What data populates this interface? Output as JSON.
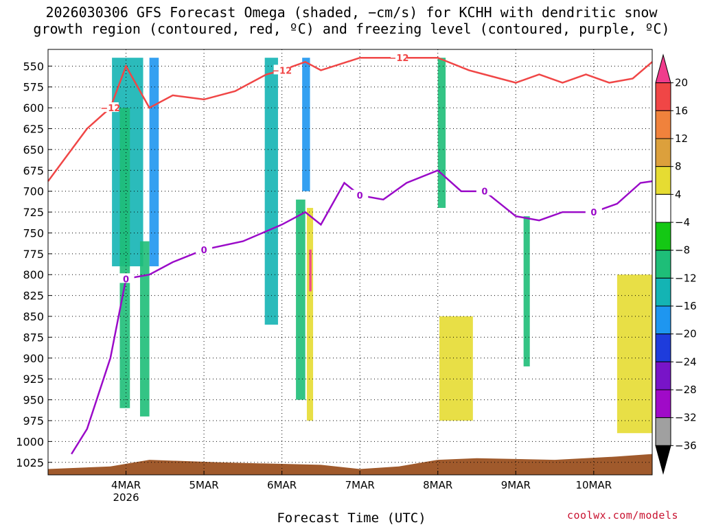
{
  "chart_data": {
    "type": "heatmap",
    "title_line1": "2026030306 GFS Forecast Omega (shaded, −cm/s) for KCHH with dendritic snow",
    "title_line2": "growth region (contoured, red, ºC) and freezing level (contoured, purple, ºC)",
    "xlabel": "Forecast Time (UTC)",
    "ylabel": "",
    "watermark": "coolwx.com/models",
    "x_range_days": [
      3.0,
      10.75
    ],
    "y_range_hpa": [
      530,
      1040
    ],
    "y_ticks": [
      550,
      575,
      600,
      625,
      650,
      675,
      700,
      725,
      750,
      775,
      800,
      825,
      850,
      875,
      900,
      925,
      950,
      975,
      1000,
      1025
    ],
    "x_ticks": [
      {
        "day": 4,
        "label": "4MAR",
        "sublabel": "2026"
      },
      {
        "day": 5,
        "label": "5MAR",
        "sublabel": ""
      },
      {
        "day": 6,
        "label": "6MAR",
        "sublabel": ""
      },
      {
        "day": 7,
        "label": "7MAR",
        "sublabel": ""
      },
      {
        "day": 8,
        "label": "8MAR",
        "sublabel": ""
      },
      {
        "day": 9,
        "label": "9MAR",
        "sublabel": ""
      },
      {
        "day": 10,
        "label": "10MAR",
        "sublabel": ""
      }
    ],
    "colorbar": {
      "labels": [
        "20",
        "16",
        "12",
        "8",
        "4",
        "−4",
        "−8",
        "−12",
        "−16",
        "−20",
        "−24",
        "−28",
        "−32",
        "−36"
      ],
      "colors": [
        "#f03c8c",
        "#f04646",
        "#f0823c",
        "#dca03c",
        "#e6dc32",
        "#ffffff",
        "#14c814",
        "#1ebe78",
        "#14b4b4",
        "#1e96f0",
        "#1e3cdc",
        "#7814c8",
        "#a00ac8",
        "#a0a0a0",
        "#000000"
      ]
    },
    "shading_bands": [
      {
        "day_start": 3.82,
        "day_end": 4.22,
        "p_top": 540,
        "p_bottom": 790,
        "category": "-12"
      },
      {
        "day_start": 3.92,
        "day_end": 4.05,
        "p_top": 600,
        "p_bottom": 960,
        "category": "-8"
      },
      {
        "day_start": 4.3,
        "day_end": 4.42,
        "p_top": 540,
        "p_bottom": 790,
        "category": "-16"
      },
      {
        "day_start": 4.18,
        "day_end": 4.3,
        "p_top": 760,
        "p_bottom": 970,
        "category": "-8"
      },
      {
        "day_start": 5.78,
        "day_end": 5.95,
        "p_top": 540,
        "p_bottom": 860,
        "category": "-12"
      },
      {
        "day_start": 6.26,
        "day_end": 6.36,
        "p_top": 540,
        "p_bottom": 700,
        "category": "-16"
      },
      {
        "day_start": 6.18,
        "day_end": 6.3,
        "p_top": 710,
        "p_bottom": 950,
        "category": "-8"
      },
      {
        "day_start": 6.32,
        "day_end": 6.4,
        "p_top": 720,
        "p_bottom": 975,
        "category": "4"
      },
      {
        "day_start": 6.35,
        "day_end": 6.38,
        "p_top": 770,
        "p_bottom": 820,
        "category": "20"
      },
      {
        "day_start": 8.0,
        "day_end": 8.1,
        "p_top": 540,
        "p_bottom": 720,
        "category": "-8"
      },
      {
        "day_start": 8.02,
        "day_end": 8.45,
        "p_top": 850,
        "p_bottom": 975,
        "category": "4"
      },
      {
        "day_start": 9.1,
        "day_end": 9.18,
        "p_top": 730,
        "p_bottom": 910,
        "category": "-8"
      },
      {
        "day_start": 10.3,
        "day_end": 10.75,
        "p_top": 800,
        "p_bottom": 990,
        "category": "4"
      }
    ],
    "freezing_level_0C": {
      "days": [
        3.3,
        3.5,
        3.8,
        4.0,
        4.3,
        4.6,
        5.0,
        5.5,
        6.0,
        6.3,
        6.5,
        6.8,
        7.0,
        7.3,
        7.6,
        8.0,
        8.3,
        8.6,
        9.0,
        9.3,
        9.6,
        10.0,
        10.3,
        10.6,
        10.75
      ],
      "p_hpa": [
        1015,
        985,
        900,
        805,
        800,
        785,
        770,
        760,
        740,
        725,
        740,
        690,
        705,
        710,
        690,
        675,
        700,
        700,
        730,
        735,
        725,
        725,
        715,
        690,
        688
      ],
      "label": "0"
    },
    "dgz_minus12C": {
      "days": [
        3.0,
        3.5,
        3.8,
        4.0,
        4.3,
        4.6,
        5.0,
        5.4,
        5.8,
        6.0,
        6.3,
        6.5,
        7.0,
        7.5,
        8.0,
        8.4,
        8.6,
        9.0,
        9.3,
        9.6,
        9.9,
        10.2,
        10.5,
        10.75
      ],
      "p_hpa": [
        688,
        625,
        600,
        550,
        600,
        585,
        590,
        580,
        560,
        555,
        545,
        555,
        540,
        540,
        540,
        555,
        560,
        570,
        560,
        570,
        560,
        570,
        565,
        545
      ],
      "label": "−12"
    },
    "surface_shading_color": "#a05a2c"
  }
}
